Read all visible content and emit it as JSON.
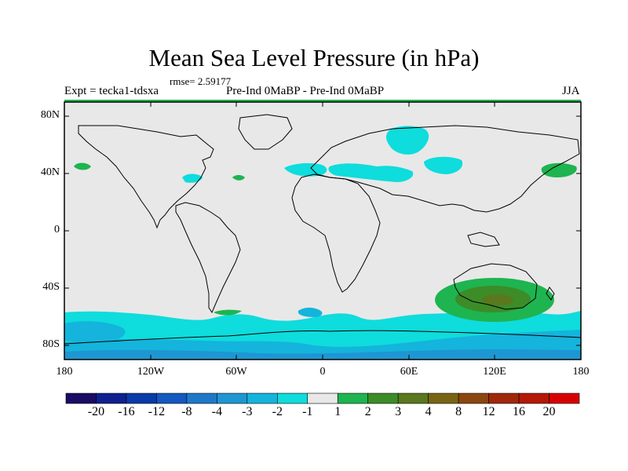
{
  "title": "Mean Sea Level Pressure (in hPa)",
  "rmse": "rmse= 2.59177",
  "experiment": "Expt = tecka1-tdsxa",
  "comparison": "Pre-Ind 0MaBP - Pre-Ind    0MaBP",
  "season": "JJA",
  "y_axis_labels": [
    "80N",
    "40N",
    "0",
    "40S",
    "80S"
  ],
  "x_axis_labels": [
    "180",
    "120W",
    "60W",
    "0",
    "60E",
    "120E",
    "180"
  ],
  "colorbar": {
    "labels": [
      "-20",
      "-16",
      "-12",
      "-8",
      "-4",
      "-3",
      "-2",
      "-1",
      "1",
      "2",
      "3",
      "4",
      "8",
      "12",
      "16",
      "20"
    ],
    "colors": [
      "#1a0c64",
      "#102090",
      "#0a3aa8",
      "#1457be",
      "#1e78c8",
      "#1e96d2",
      "#14b4dc",
      "#0fdcdc",
      "#e8e8e8",
      "#1eb450",
      "#3c8c28",
      "#5a781e",
      "#786414",
      "#8c460f",
      "#a0280a",
      "#b41905",
      "#d70000"
    ]
  },
  "colors": {
    "ocean_bg": "#e8e8e8",
    "light_cyan": "#0fdcdc",
    "cyan": "#14b4dc",
    "light_green": "#1eb450",
    "green": "#3c8c28",
    "olive": "#5a781e"
  }
}
